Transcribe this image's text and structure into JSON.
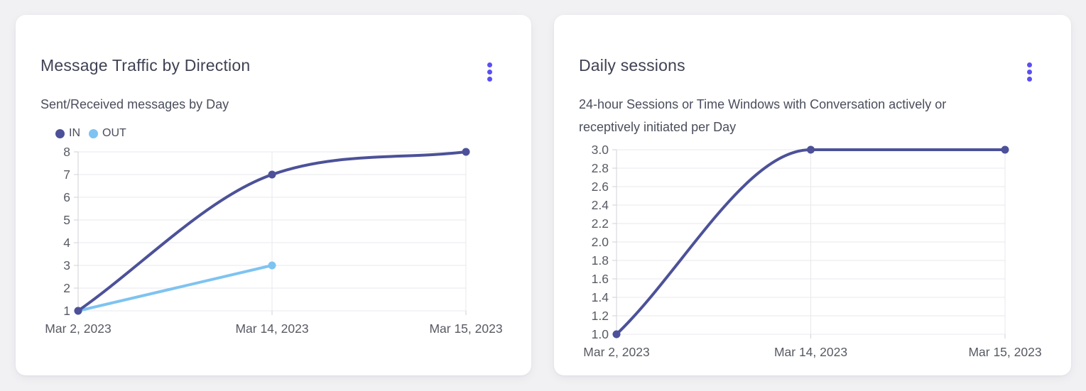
{
  "page": {
    "background": "#f1f1f4"
  },
  "colors": {
    "accent_menu": "#5a4ff2",
    "indigo_series": "#4c5199",
    "lightblue_series": "#7ec3f1",
    "grid": "#e8e8ec",
    "axis": "#d2d2d8"
  },
  "cards": [
    {
      "title": "Message Traffic by Direction",
      "menu_icon": "kebab-menu-icon",
      "subtitle_lines": [
        "Sent/Received messages by Day"
      ],
      "chart_data": {
        "type": "line",
        "categories": [
          "Mar 2, 2023",
          "Mar 14, 2023",
          "Mar 15, 2023"
        ],
        "series": [
          {
            "name": "IN",
            "color": "#4c5199",
            "values": [
              1,
              7,
              8
            ]
          },
          {
            "name": "OUT",
            "color": "#7ec3f1",
            "values": [
              1,
              3,
              null
            ]
          }
        ],
        "ylim": [
          1,
          8
        ],
        "yticks": {
          "values": [
            8,
            7,
            6,
            5,
            4,
            3,
            2,
            1
          ],
          "labels": [
            "8",
            "7",
            "6",
            "5",
            "4",
            "3",
            "2",
            "1"
          ]
        },
        "legend_position": "top-left",
        "grid": true,
        "curve": "monotone"
      }
    },
    {
      "title": "Daily sessions",
      "menu_icon": "kebab-menu-icon",
      "subtitle_lines": [
        "24-hour Sessions or Time Windows with Conversation actively or",
        "receptively initiated per Day"
      ],
      "chart_data": {
        "type": "line",
        "categories": [
          "Mar 2, 2023",
          "Mar 14, 2023",
          "Mar 15, 2023"
        ],
        "series": [
          {
            "name": "",
            "color": "#4c5199",
            "values": [
              1.0,
              3.0,
              3.0
            ]
          }
        ],
        "ylim": [
          1.0,
          3.0
        ],
        "yticks": {
          "values": [
            3.0,
            2.8,
            2.6,
            2.4,
            2.2,
            2.0,
            1.8,
            1.6,
            1.4,
            1.2,
            1.0
          ],
          "labels": [
            "3.0",
            "2.8",
            "2.6",
            "2.4",
            "2.2",
            "2.0",
            "1.8",
            "1.6",
            "1.4",
            "1.2",
            "1.0"
          ]
        },
        "legend_position": "none",
        "grid": true,
        "curve": "monotone"
      }
    }
  ]
}
